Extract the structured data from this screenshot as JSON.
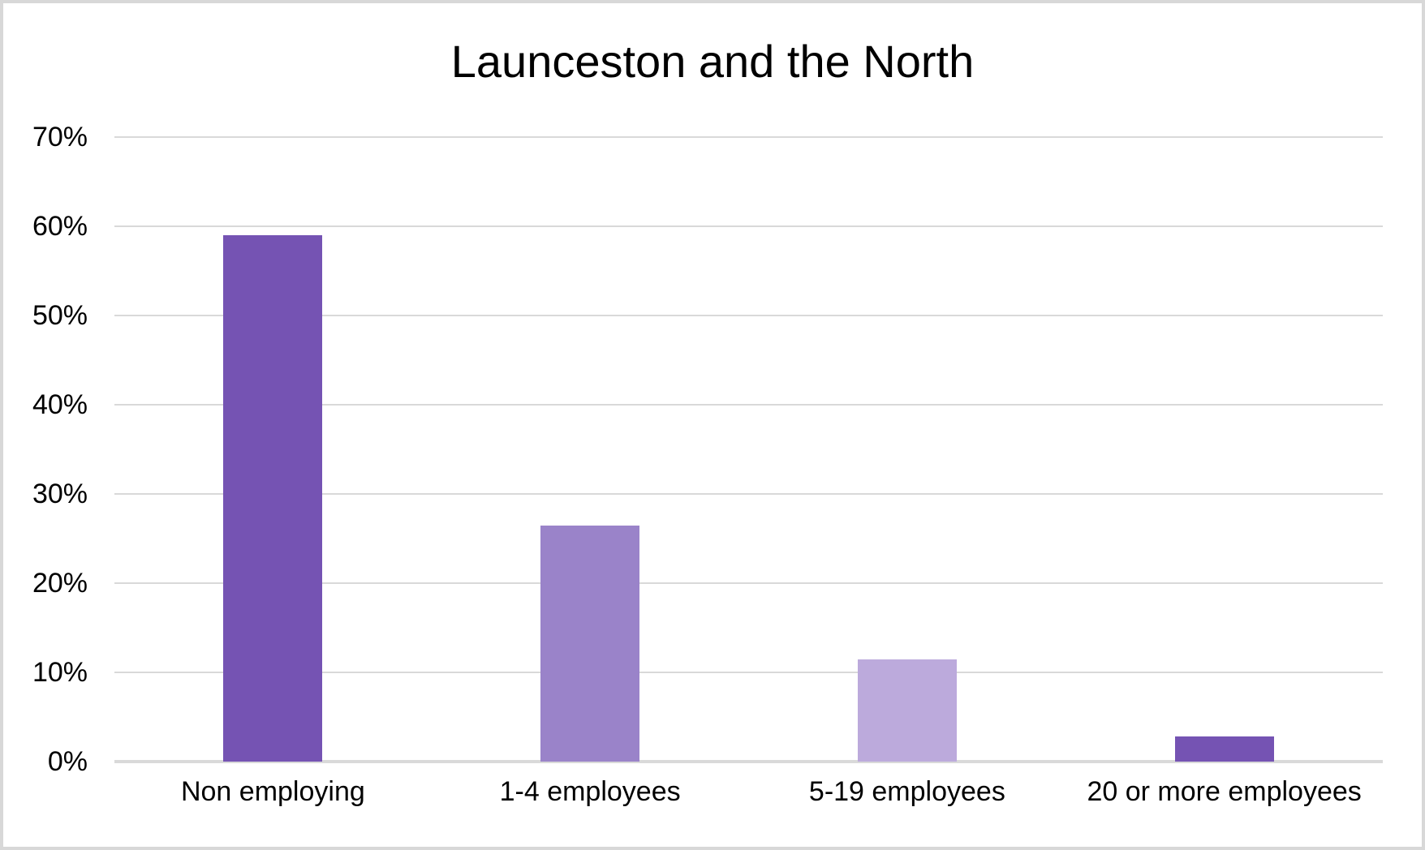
{
  "frame": {
    "background": "#ffffff",
    "border_color": "#d8d8d8"
  },
  "chart_data": {
    "type": "bar",
    "title": "Launceston and the North",
    "categories": [
      "Non employing",
      "1-4 employees",
      "5-19 employees",
      "20 or more employees"
    ],
    "values": [
      59,
      26.5,
      11.5,
      2.8
    ],
    "value_unit": "%",
    "bar_colors": [
      "#7553b3",
      "#9a83c9",
      "#bcaadc",
      "#7553b3"
    ],
    "xlabel": "",
    "ylabel": "",
    "ylim": [
      0,
      70
    ],
    "y_tick_step": 10,
    "y_tick_labels": [
      "0%",
      "10%",
      "20%",
      "30%",
      "40%",
      "50%",
      "60%",
      "70%"
    ],
    "grid": true,
    "gridline_color": "#d9d9d9",
    "axis_line_color": "#d9d9d9",
    "legend_position": "none"
  }
}
